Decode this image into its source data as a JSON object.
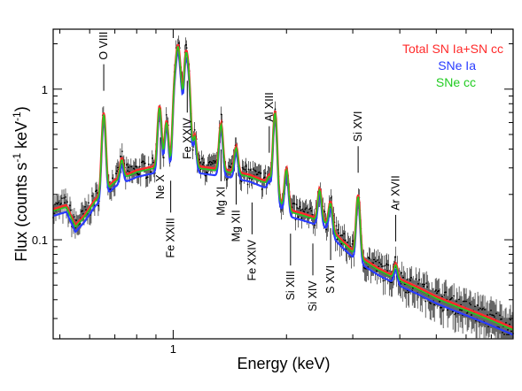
{
  "chart_data": {
    "type": "line",
    "xlabel": "Energy (keV)",
    "ylabel_main": "Flux (counts s",
    "ylabel_sup1": "-1",
    "ylabel_mid": " keV",
    "ylabel_sup2": "-1",
    "ylabel_end": ")",
    "x_scale": "log",
    "y_scale": "log",
    "xlim": [
      0.48,
      8.0
    ],
    "ylim": [
      0.022,
      2.5
    ],
    "x_ticks": [
      {
        "value": 1,
        "label": "1"
      }
    ],
    "y_ticks": [
      {
        "value": 0.1,
        "label": "0.1"
      },
      {
        "value": 1,
        "label": "1"
      }
    ],
    "legend_position": "top-right",
    "series": [
      {
        "name": "Total SN Ia+SN cc",
        "color": "#ff2a2a"
      },
      {
        "name": "SNe Ia",
        "color": "#2a3cff"
      },
      {
        "name": "SNe cc",
        "color": "#22cc22"
      }
    ],
    "continuum": {
      "x": [
        0.48,
        0.52,
        0.55,
        0.58,
        0.62,
        0.7,
        0.8,
        0.9,
        1.0,
        1.2,
        1.4,
        1.6,
        1.8,
        1.9,
        2.0,
        2.2,
        2.4,
        2.6,
        2.7,
        2.8,
        3.0,
        3.2,
        3.5,
        4.0,
        4.5,
        5.0,
        6.0,
        7.0,
        8.0
      ],
      "total": [
        0.16,
        0.17,
        0.125,
        0.145,
        0.185,
        0.25,
        0.29,
        0.31,
        0.32,
        0.305,
        0.29,
        0.27,
        0.24,
        0.19,
        0.16,
        0.15,
        0.14,
        0.13,
        0.11,
        0.1,
        0.085,
        0.075,
        0.065,
        0.055,
        0.048,
        0.042,
        0.035,
        0.03,
        0.026
      ],
      "snia_factor": 0.9
    },
    "emission_lines": [
      {
        "x": 0.654,
        "peak": 0.7,
        "label": "O VIII"
      },
      {
        "x": 0.73,
        "peak": 0.35
      },
      {
        "x": 0.92,
        "peak": 0.78,
        "label": "Ne X"
      },
      {
        "x": 0.96,
        "peak": 0.62
      },
      {
        "x": 1.01,
        "peak": 1.05,
        "label": "Fe XXIII"
      },
      {
        "x": 1.03,
        "peak": 1.75
      },
      {
        "x": 1.05,
        "peak": 0.95
      },
      {
        "x": 1.08,
        "peak": 1.6
      },
      {
        "x": 1.1,
        "peak": 1.1,
        "label": "Fe XXIV"
      },
      {
        "x": 1.14,
        "peak": 0.5
      },
      {
        "x": 1.34,
        "peak": 0.6,
        "label": "Mg XI"
      },
      {
        "x": 1.47,
        "peak": 0.42,
        "label": "Mg XII"
      },
      {
        "x": 1.6,
        "peak": 0.2,
        "label": "Fe XXIV"
      },
      {
        "x": 1.8,
        "peak": 0.27,
        "label": "Al XIII"
      },
      {
        "x": 1.865,
        "peak": 0.72,
        "label": "Si XIII"
      },
      {
        "x": 2.0,
        "peak": 0.3,
        "label": "Si XIV"
      },
      {
        "x": 2.45,
        "peak": 0.22,
        "label": "S XVI"
      },
      {
        "x": 2.62,
        "peak": 0.18
      },
      {
        "x": 3.1,
        "peak": 0.2,
        "label": "Si XVI"
      },
      {
        "x": 3.9,
        "peak": 0.07,
        "label": "Ar XVII"
      }
    ],
    "line_labels": [
      {
        "text": "O VIII",
        "x": 0.654,
        "pos": "above"
      },
      {
        "text": "Ne X",
        "x": 0.925,
        "pos": "below"
      },
      {
        "text": "Fe XXIII",
        "x": 0.985,
        "pos": "below"
      },
      {
        "text": "Fe XXIV",
        "x": 1.09,
        "pos": "below"
      },
      {
        "text": "Mg XI",
        "x": 1.34,
        "pos": "below"
      },
      {
        "text": "Mg XII",
        "x": 1.47,
        "pos": "below"
      },
      {
        "text": "Fe XXIV",
        "x": 1.62,
        "pos": "below"
      },
      {
        "text": "Al XIII",
        "x": 1.8,
        "pos": "above"
      },
      {
        "text": "Si XIII",
        "x": 2.05,
        "pos": "below"
      },
      {
        "text": "Si XIV",
        "x": 2.35,
        "pos": "below"
      },
      {
        "text": "S XVI",
        "x": 2.62,
        "pos": "below"
      },
      {
        "text": "Si XVI",
        "x": 3.1,
        "pos": "above"
      },
      {
        "text": "Ar XVII",
        "x": 3.9,
        "pos": "above"
      }
    ]
  }
}
